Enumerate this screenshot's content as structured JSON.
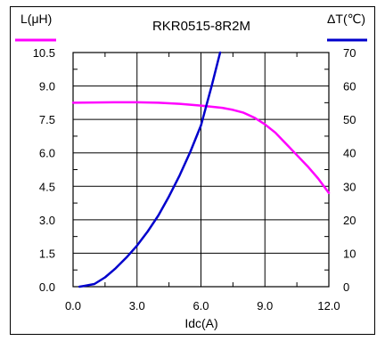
{
  "chart_data": {
    "type": "line",
    "title": "RKR0515-8R2M",
    "xlabel": "Idc(A)",
    "ylabel_left": "L(μH)",
    "ylabel_right": "ΔT(℃)",
    "xlim": [
      0,
      12
    ],
    "ylim_left": [
      0,
      10.5
    ],
    "ylim_right": [
      0,
      70
    ],
    "x_ticks": [
      "0.0",
      "3.0",
      "6.0",
      "9.0",
      "12.0"
    ],
    "y_ticks_left": [
      "0.0",
      "1.5",
      "3.0",
      "4.5",
      "6.0",
      "7.5",
      "9.0",
      "10.5"
    ],
    "y_ticks_right": [
      "0",
      "10",
      "20",
      "30",
      "40",
      "50",
      "60",
      "70"
    ],
    "grid": true,
    "colors": {
      "inductance": "#ff00ff",
      "temperature": "#0000cc"
    },
    "series": [
      {
        "axis": "left",
        "color": "#ff00ff",
        "x": [
          0,
          1,
          2,
          3,
          4,
          5,
          6,
          6.5,
          7,
          7.5,
          8,
          8.5,
          9,
          9.5,
          10,
          10.5,
          11,
          11.5,
          12
        ],
        "y": [
          8.25,
          8.26,
          8.27,
          8.27,
          8.25,
          8.2,
          8.12,
          8.07,
          8.02,
          7.93,
          7.8,
          7.58,
          7.28,
          6.9,
          6.4,
          5.9,
          5.4,
          4.85,
          4.2
        ]
      },
      {
        "axis": "right",
        "color": "#0000cc",
        "x": [
          0.3,
          0.5,
          1,
          1.5,
          2,
          2.5,
          3,
          3.5,
          4,
          4.5,
          5,
          5.5,
          6,
          6.5,
          6.9
        ],
        "y": [
          0,
          0.2,
          0.8,
          2.8,
          5.5,
          8.7,
          12.3,
          16.5,
          21.3,
          27,
          33.3,
          40.3,
          48.2,
          60,
          70
        ]
      }
    ]
  }
}
